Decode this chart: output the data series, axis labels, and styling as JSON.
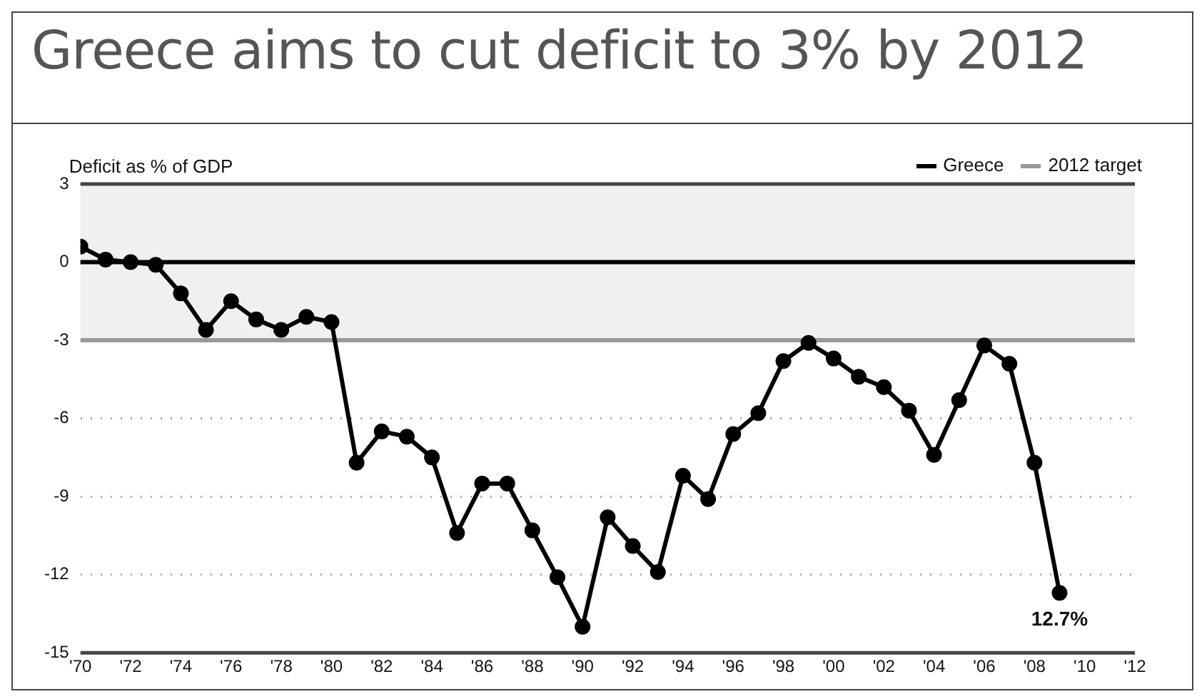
{
  "chart_data": {
    "type": "line",
    "title": "Greece aims to cut deficit to 3% by 2012",
    "ylabel": "Deficit as % of GDP",
    "x": [
      1970,
      1971,
      1972,
      1973,
      1974,
      1975,
      1976,
      1977,
      1978,
      1979,
      1980,
      1981,
      1982,
      1983,
      1984,
      1985,
      1986,
      1987,
      1988,
      1989,
      1990,
      1991,
      1992,
      1993,
      1994,
      1995,
      1996,
      1997,
      1998,
      1999,
      2000,
      2001,
      2002,
      2003,
      2004,
      2005,
      2006,
      2007,
      2008,
      2009
    ],
    "series": [
      {
        "name": "Greece",
        "color": "#000000",
        "values": [
          0.6,
          0.1,
          0.0,
          -0.1,
          -1.2,
          -2.6,
          -1.5,
          -2.2,
          -2.6,
          -2.1,
          -2.3,
          -7.7,
          -6.5,
          -6.7,
          -7.5,
          -10.4,
          -8.5,
          -8.5,
          -10.3,
          -12.1,
          -14.0,
          -9.8,
          -10.9,
          -11.9,
          -8.2,
          -9.1,
          -6.6,
          -5.8,
          -3.8,
          -3.1,
          -3.7,
          -4.4,
          -4.8,
          -5.7,
          -7.4,
          -5.3,
          -3.2,
          -3.9,
          -7.7,
          -12.7
        ]
      }
    ],
    "xlim": [
      1970,
      2012
    ],
    "xticks": [
      {
        "value": 1970,
        "label": "'70"
      },
      {
        "value": 1972,
        "label": "'72"
      },
      {
        "value": 1974,
        "label": "'74"
      },
      {
        "value": 1976,
        "label": "'76"
      },
      {
        "value": 1978,
        "label": "'78"
      },
      {
        "value": 1980,
        "label": "'80"
      },
      {
        "value": 1982,
        "label": "'82"
      },
      {
        "value": 1984,
        "label": "'84"
      },
      {
        "value": 1986,
        "label": "'86"
      },
      {
        "value": 1988,
        "label": "'88"
      },
      {
        "value": 1990,
        "label": "'90"
      },
      {
        "value": 1992,
        "label": "'92"
      },
      {
        "value": 1994,
        "label": "'94"
      },
      {
        "value": 1996,
        "label": "'96"
      },
      {
        "value": 1998,
        "label": "'98"
      },
      {
        "value": 2000,
        "label": "'00"
      },
      {
        "value": 2002,
        "label": "'02"
      },
      {
        "value": 2004,
        "label": "'04"
      },
      {
        "value": 2006,
        "label": "'06"
      },
      {
        "value": 2008,
        "label": "'08"
      },
      {
        "value": 2010,
        "label": "'10"
      },
      {
        "value": 2012,
        "label": "'12"
      }
    ],
    "ylim": [
      -15,
      3
    ],
    "yticks": [
      -15,
      -12,
      -9,
      -6,
      -3,
      0,
      3
    ],
    "grid": "y",
    "legend": "top right",
    "marker": "circle",
    "line_style": "solid",
    "bands": [
      {
        "axis": "y",
        "from": -3,
        "to": 3,
        "color": "#eff0f0"
      }
    ],
    "ref_lines": [
      {
        "axis": "y",
        "value": 0,
        "color": "#000000"
      },
      {
        "axis": "y",
        "value": -3,
        "label": "2012 target",
        "color": "#999999"
      }
    ],
    "annotations": [
      {
        "text": "12.7%",
        "x": 2009,
        "y": -12.7
      }
    ]
  }
}
